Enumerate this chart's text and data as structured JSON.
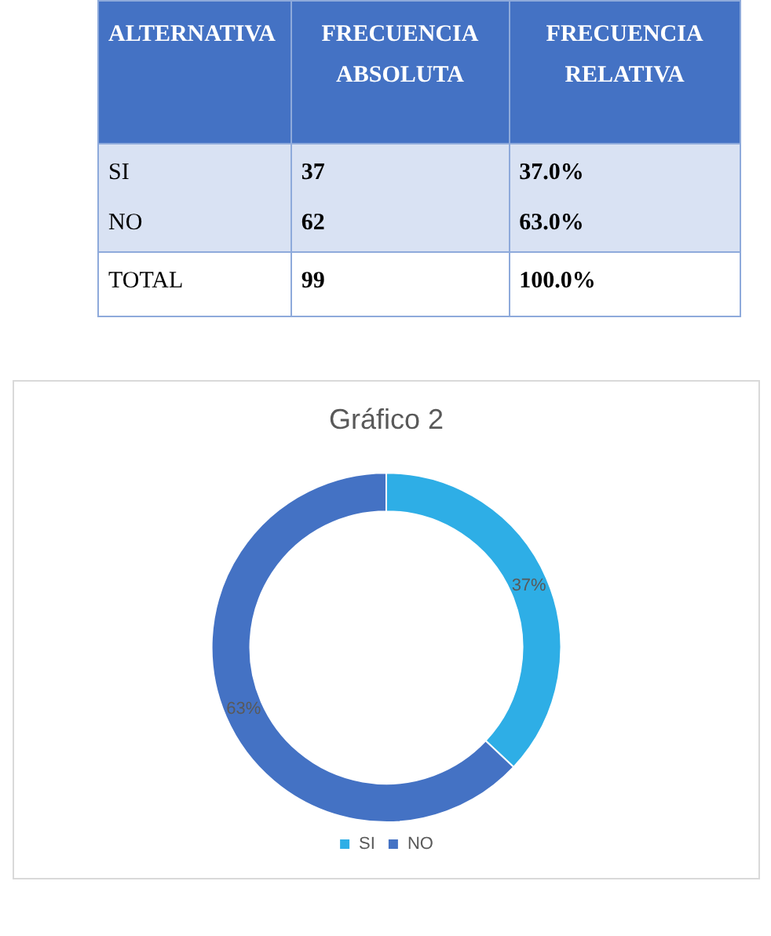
{
  "chart_data": [
    {
      "type": "other",
      "annotations": [
        "ALTERNATIVA",
        "FRECUENCIA ABSOLUTA",
        "FRECUENCIA RELATIVA",
        "SI",
        "37",
        "37.0%",
        "NO",
        "62",
        "63.0%",
        "TOTAL",
        "99",
        "100.0%"
      ]
    },
    {
      "type": "donut",
      "title": "Gráfico 2",
      "categories": [
        "SI",
        "NO"
      ],
      "values": [
        37,
        63
      ],
      "colors": [
        "#2eaee6",
        "#4472c4"
      ],
      "value_labels": [
        "37%",
        "63%"
      ],
      "legend": "bottom"
    }
  ]
}
